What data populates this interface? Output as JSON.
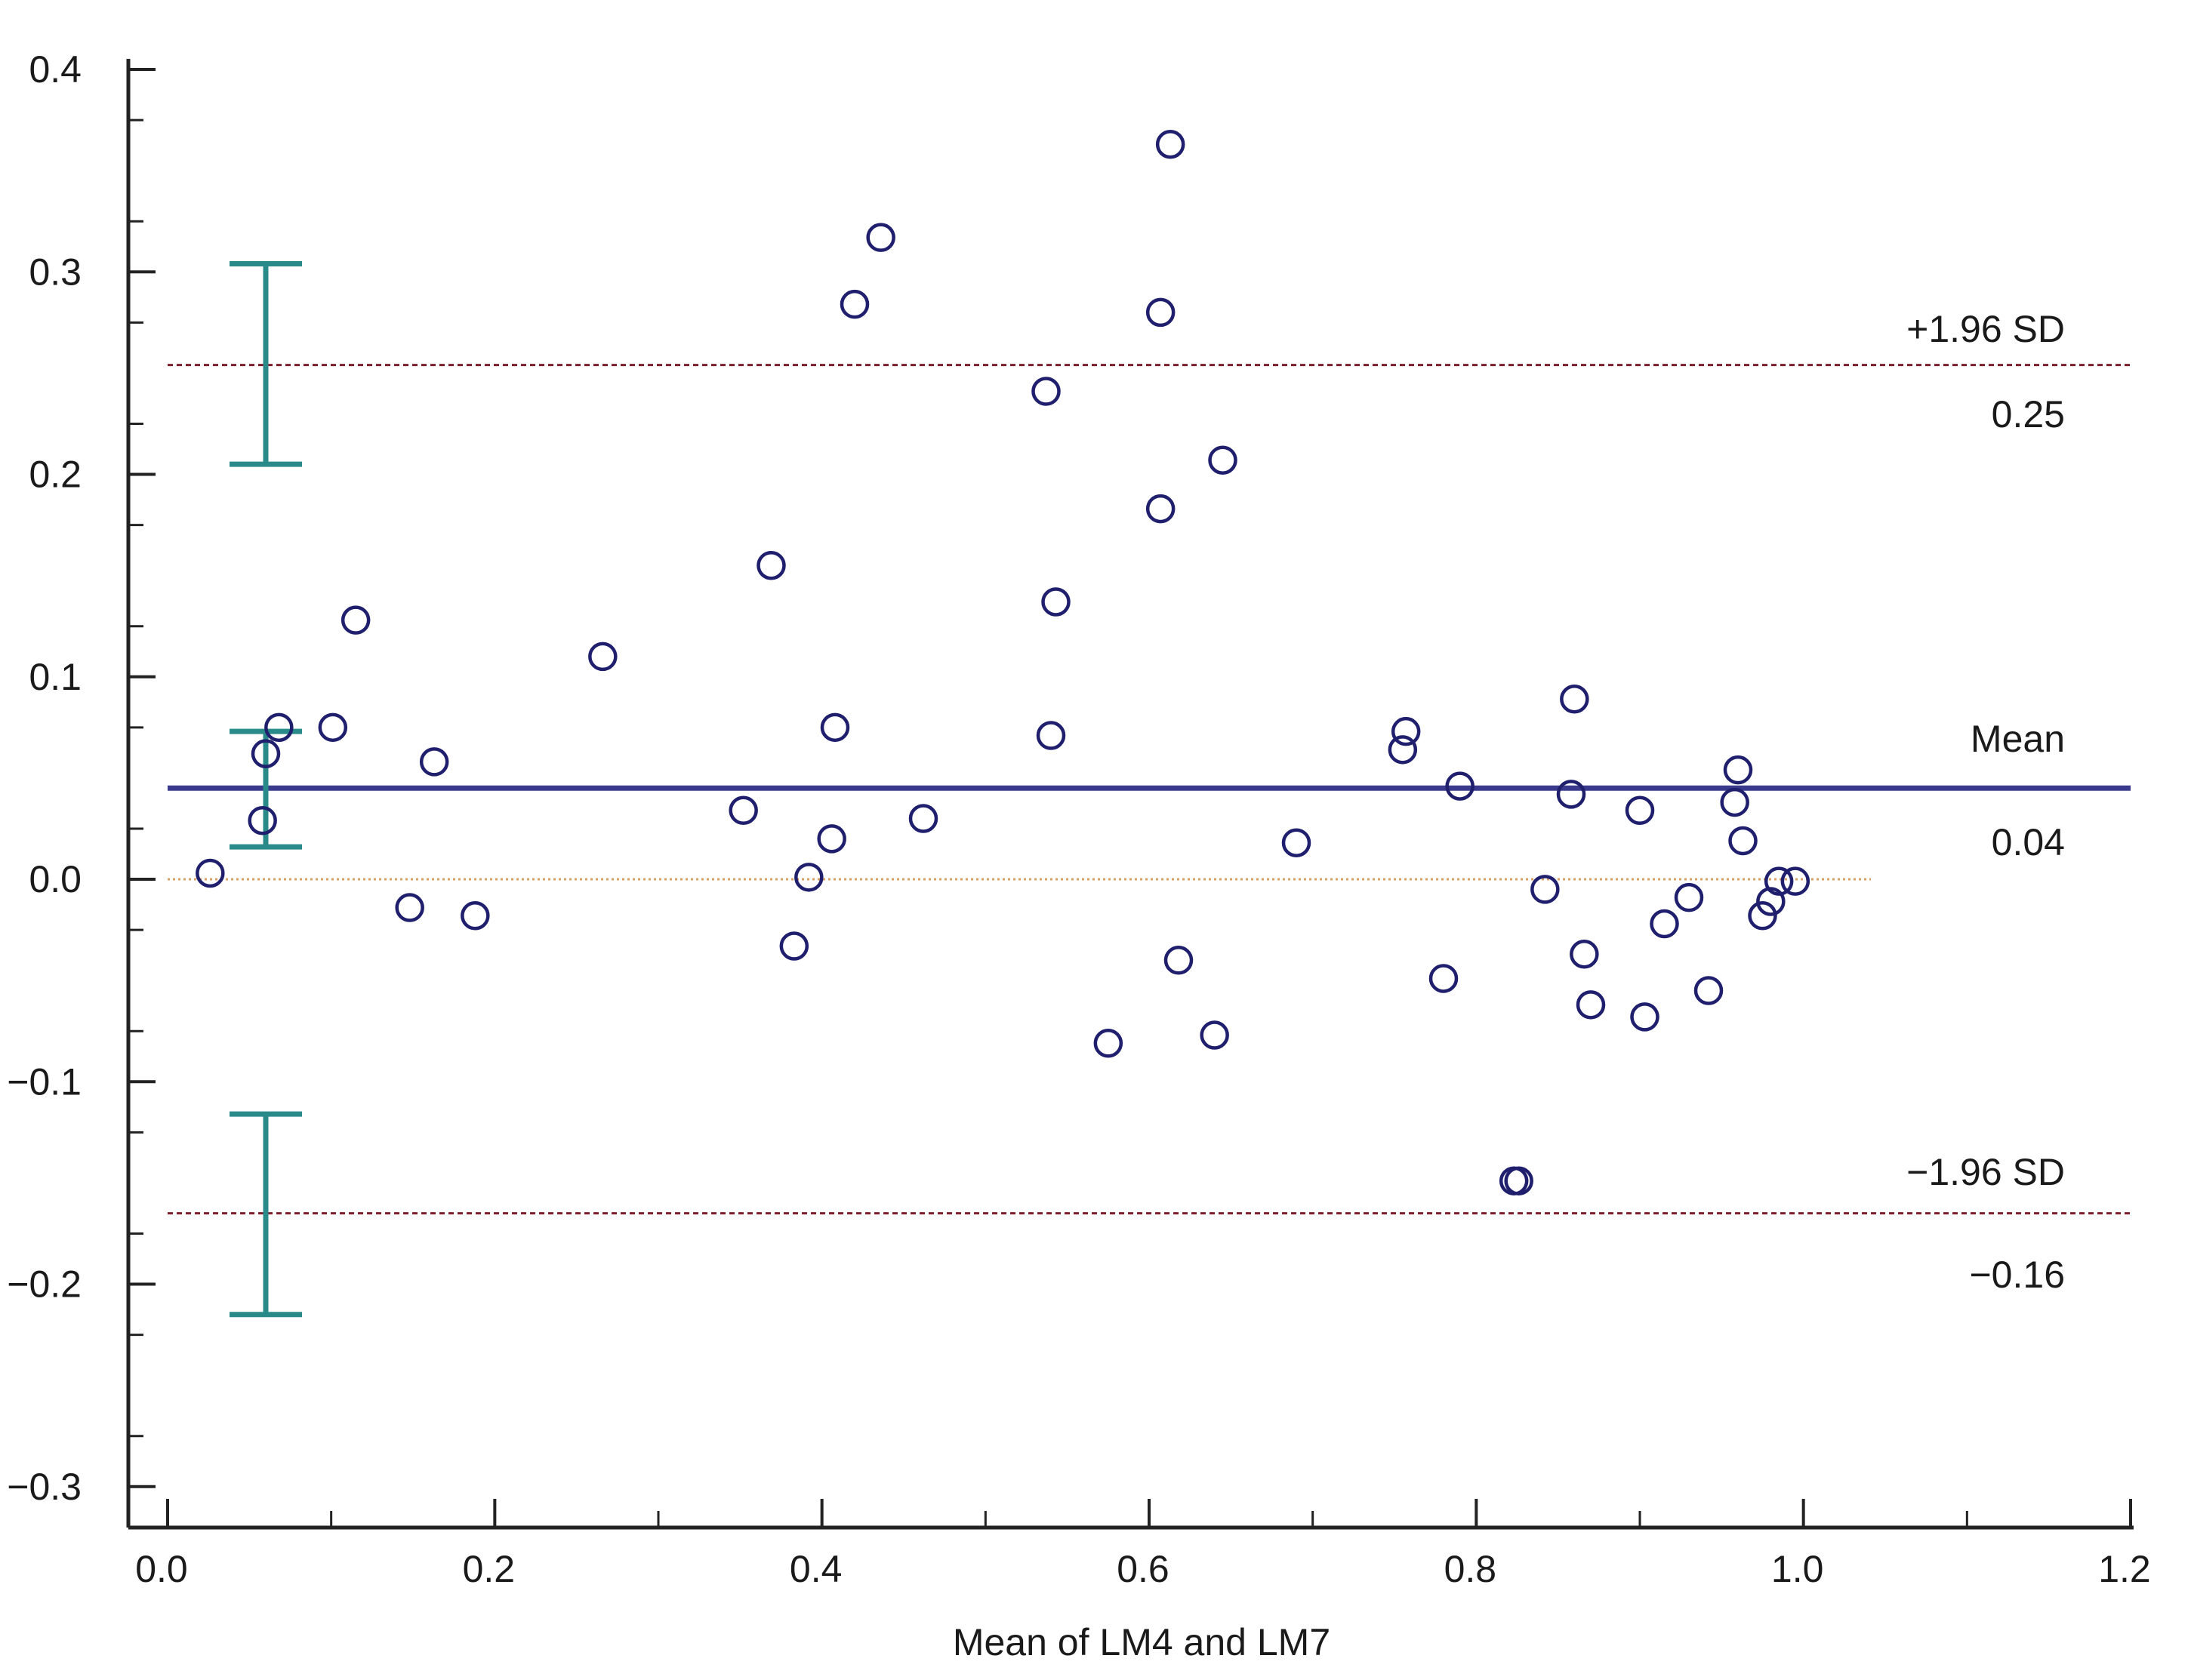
{
  "chart_data": {
    "type": "scatter",
    "title": "",
    "xlabel": "Mean of LM4 and LM7",
    "ylabel": "",
    "xlim": [
      0.0,
      1.2
    ],
    "ylim": [
      -0.3,
      0.4
    ],
    "x_ticks": [
      "0.0",
      "0.2",
      "0.4",
      "0.6",
      "0.8",
      "1.0",
      "1.2"
    ],
    "x_tick_values": [
      0.0,
      0.2,
      0.4,
      0.6,
      0.8,
      1.0,
      1.2
    ],
    "y_ticks": [
      "0.4",
      "0.3",
      "0.2",
      "0.1",
      "0.0",
      "−0.1",
      "−0.2",
      "−0.3"
    ],
    "y_tick_values": [
      0.4,
      0.3,
      0.2,
      0.1,
      0.0,
      -0.1,
      -0.2,
      -0.3
    ],
    "grid": false,
    "reference_lines": {
      "upper_loa": {
        "label": "+1.96 SD",
        "value_label": "0.25",
        "value": 0.254,
        "color": "#7a1f2b"
      },
      "mean": {
        "label": "Mean",
        "value_label": "0.04",
        "value": 0.045,
        "color": "#3a3a8c"
      },
      "zero": {
        "value": 0.0,
        "color": "#d9a066"
      },
      "lower_loa": {
        "label": "−1.96 SD",
        "value_label": "−0.16",
        "value": -0.165,
        "color": "#7a1f2b"
      }
    },
    "confidence_intervals": [
      {
        "name": "upper-loa-ci",
        "x": 0.06,
        "low": 0.205,
        "high": 0.304
      },
      {
        "name": "mean-ci",
        "x": 0.06,
        "low": 0.016,
        "high": 0.073
      },
      {
        "name": "lower-loa-ci",
        "x": 0.06,
        "low": -0.215,
        "high": -0.116
      }
    ],
    "ci_color": "#2a8a8a",
    "point_color": "#1f1f6e",
    "series": [
      {
        "name": "differences",
        "points": [
          [
            0.026,
            0.003
          ],
          [
            0.058,
            0.029
          ],
          [
            0.06,
            0.062
          ],
          [
            0.068,
            0.075
          ],
          [
            0.101,
            0.075
          ],
          [
            0.115,
            0.128
          ],
          [
            0.148,
            -0.014
          ],
          [
            0.163,
            0.058
          ],
          [
            0.188,
            -0.018
          ],
          [
            0.266,
            0.11
          ],
          [
            0.352,
            0.034
          ],
          [
            0.369,
            0.155
          ],
          [
            0.383,
            -0.033
          ],
          [
            0.392,
            0.001
          ],
          [
            0.406,
            0.02
          ],
          [
            0.408,
            0.075
          ],
          [
            0.42,
            0.284
          ],
          [
            0.436,
            0.317
          ],
          [
            0.462,
            0.03
          ],
          [
            0.537,
            0.241
          ],
          [
            0.54,
            0.071
          ],
          [
            0.543,
            0.137
          ],
          [
            0.575,
            -0.081
          ],
          [
            0.607,
            0.183
          ],
          [
            0.607,
            0.28
          ],
          [
            0.613,
            0.363
          ],
          [
            0.618,
            -0.04
          ],
          [
            0.64,
            -0.077
          ],
          [
            0.645,
            0.207
          ],
          [
            0.69,
            0.018
          ],
          [
            0.755,
            0.064
          ],
          [
            0.757,
            0.073
          ],
          [
            0.78,
            -0.049
          ],
          [
            0.79,
            0.046
          ],
          [
            0.823,
            -0.149
          ],
          [
            0.826,
            -0.149
          ],
          [
            0.842,
            -0.005
          ],
          [
            0.858,
            0.042
          ],
          [
            0.86,
            0.089
          ],
          [
            0.866,
            -0.037
          ],
          [
            0.87,
            -0.062
          ],
          [
            0.9,
            0.034
          ],
          [
            0.903,
            -0.068
          ],
          [
            0.915,
            -0.022
          ],
          [
            0.93,
            -0.009
          ],
          [
            0.942,
            -0.055
          ],
          [
            0.958,
            0.038
          ],
          [
            0.96,
            0.054
          ],
          [
            0.963,
            0.019
          ],
          [
            0.975,
            -0.018
          ],
          [
            0.98,
            -0.011
          ],
          [
            0.985,
            -0.001
          ],
          [
            0.995,
            -0.001
          ]
        ]
      }
    ]
  }
}
